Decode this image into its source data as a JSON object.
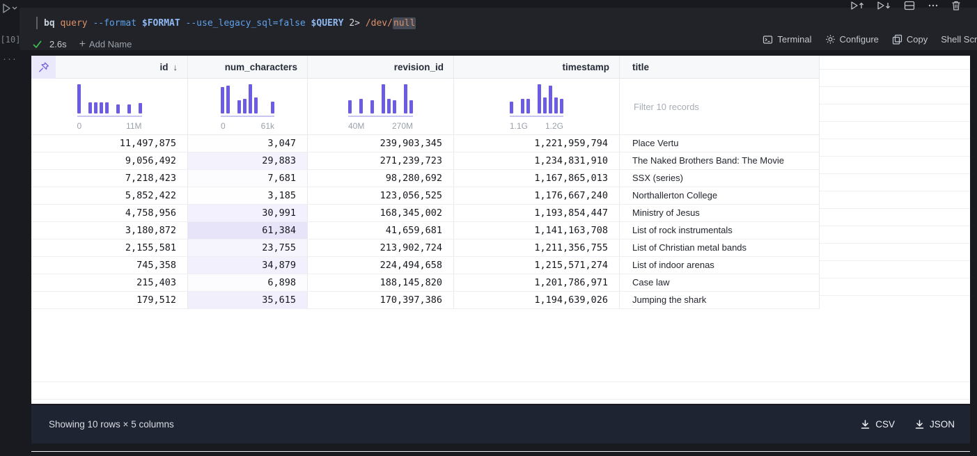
{
  "cell": {
    "execution_count": "[10]",
    "command": {
      "tokens": [
        {
          "text": "bq ",
          "color": "#c8d3dc",
          "bold": true
        },
        {
          "text": "query ",
          "color": "#de9168"
        },
        {
          "text": "--format ",
          "color": "#5ea1e8"
        },
        {
          "text": "$FORMAT ",
          "color": "#8fb8f2",
          "bold": true
        },
        {
          "text": "--use_legacy_sql=false ",
          "color": "#5ea1e8"
        },
        {
          "text": "$QUERY ",
          "color": "#8fb8f2",
          "bold": true
        },
        {
          "text": "2> ",
          "color": "#d4d7dc"
        },
        {
          "text": "/dev/",
          "color": "#de9168"
        },
        {
          "text": "null",
          "color": "#de9168",
          "highlight": true
        }
      ]
    },
    "status": {
      "check_icon": "check-icon",
      "duration": "2.6s",
      "add_name_label": "Add Name"
    },
    "actions": [
      {
        "icon": "terminal-icon",
        "label": "Terminal"
      },
      {
        "icon": "gear-icon",
        "label": "Configure"
      },
      {
        "icon": "copy-icon",
        "label": "Copy"
      },
      {
        "icon": null,
        "label": "Shell Script"
      }
    ]
  },
  "toolbar": {
    "icons": [
      "run-above-icon",
      "run-below-icon",
      "split-cell-icon",
      "more-actions-icon",
      "trash-icon"
    ]
  },
  "table": {
    "pin_icon": "pin-icon",
    "columns": [
      {
        "name": "id",
        "sort": "desc"
      },
      {
        "name": "num_characters"
      },
      {
        "name": "revision_id"
      },
      {
        "name": "timestamp"
      },
      {
        "name": "title"
      }
    ],
    "filter_placeholder": "Filter 10 records",
    "rows": [
      [
        "11,497,875",
        "3,047",
        "239,903,345",
        "1,221,959,794",
        "Place Vertu"
      ],
      [
        "9,056,492",
        "29,883",
        "271,239,723",
        "1,234,831,910",
        "The Naked Brothers Band: The Movie"
      ],
      [
        "7,218,423",
        "7,681",
        "98,280,692",
        "1,167,865,013",
        "SSX (series)"
      ],
      [
        "5,852,422",
        "3,185",
        "123,056,525",
        "1,176,667,240",
        "Northallerton College"
      ],
      [
        "4,758,956",
        "30,991",
        "168,345,002",
        "1,193,854,447",
        "Ministry of Jesus"
      ],
      [
        "3,180,872",
        "61,384",
        "41,659,681",
        "1,141,163,708",
        "List of rock instrumentals"
      ],
      [
        "2,155,581",
        "23,755",
        "213,902,724",
        "1,211,356,755",
        "List of Christian metal bands"
      ],
      [
        "745,358",
        "34,879",
        "224,494,658",
        "1,215,571,274",
        "List of indoor arenas"
      ],
      [
        "215,403",
        "6,898",
        "188,145,820",
        "1,201,786,971",
        "Case law"
      ],
      [
        "179,512",
        "35,615",
        "170,397,386",
        "1,194,639,026",
        "Jumping the shark"
      ]
    ]
  },
  "chart_data": [
    {
      "type": "bar",
      "title": "id distribution",
      "heights": [
        1,
        0,
        0.38,
        0.38,
        0.38,
        0.38,
        0,
        0.3,
        0,
        0.3,
        0,
        0.35
      ],
      "min_label": "0",
      "max_label": "11M",
      "bar_color": "#6c5ce4"
    },
    {
      "type": "bar",
      "title": "num_characters distribution",
      "heights": [
        0.9,
        0.95,
        0,
        0.45,
        0.5,
        1,
        0.55,
        0,
        0,
        0.4
      ],
      "min_label": "0",
      "max_label": "61k",
      "bar_color": "#6c5ce4"
    },
    {
      "type": "bar",
      "title": "revision_id distribution",
      "heights": [
        0.45,
        0,
        0.5,
        0,
        0.45,
        0,
        1,
        0.5,
        0.45,
        0,
        1,
        0.45
      ],
      "min_label": "40M",
      "max_label": "270M",
      "bar_color": "#6c5ce4"
    },
    {
      "type": "bar",
      "title": "timestamp distribution",
      "heights": [
        0.4,
        0,
        0.5,
        0.5,
        0,
        1,
        0.55,
        0.95,
        0.55,
        0.5
      ],
      "min_label": "1.1G",
      "max_label": "1.2G",
      "bar_color": "#6c5ce4"
    }
  ],
  "num_characters_max": 61384,
  "colors": {
    "accent_purple": "#6c5ce4",
    "pin_bg": "#eae8fb",
    "check_green": "#3fb950",
    "footer_bg": "#1e2431",
    "panel_bg": "#212329"
  },
  "footer": {
    "summary": "Showing 10 rows × 5 columns",
    "csv_label": "CSV",
    "json_label": "JSON",
    "download_icon": "download-icon"
  }
}
